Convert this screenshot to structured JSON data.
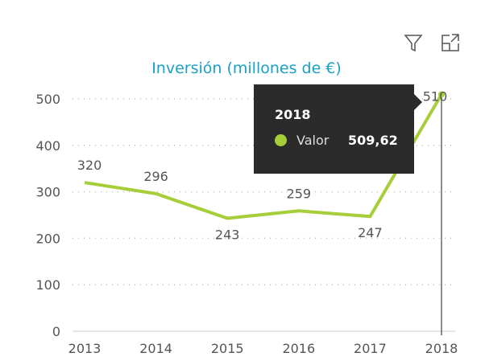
{
  "toolbar": {
    "icons": [
      "filter-icon",
      "focus-mode-icon"
    ]
  },
  "chart_data": {
    "type": "line",
    "title": "Inversión (millones de €)",
    "categories": [
      "2013",
      "2014",
      "2015",
      "2016",
      "2017",
      "2018"
    ],
    "series": [
      {
        "name": "Valor",
        "values": [
          320,
          296,
          243,
          259,
          247,
          509.62
        ]
      }
    ],
    "data_labels": [
      "320",
      "296",
      "243",
      "259",
      "247",
      "510"
    ],
    "yticks": [
      "0",
      "100",
      "200",
      "300",
      "400",
      "500"
    ],
    "ylim": [
      0,
      500
    ],
    "grid": "horizontal dotted",
    "color": "#a6ce39"
  },
  "tooltip": {
    "title": "2018",
    "label": "Valor",
    "value": "509,62"
  }
}
